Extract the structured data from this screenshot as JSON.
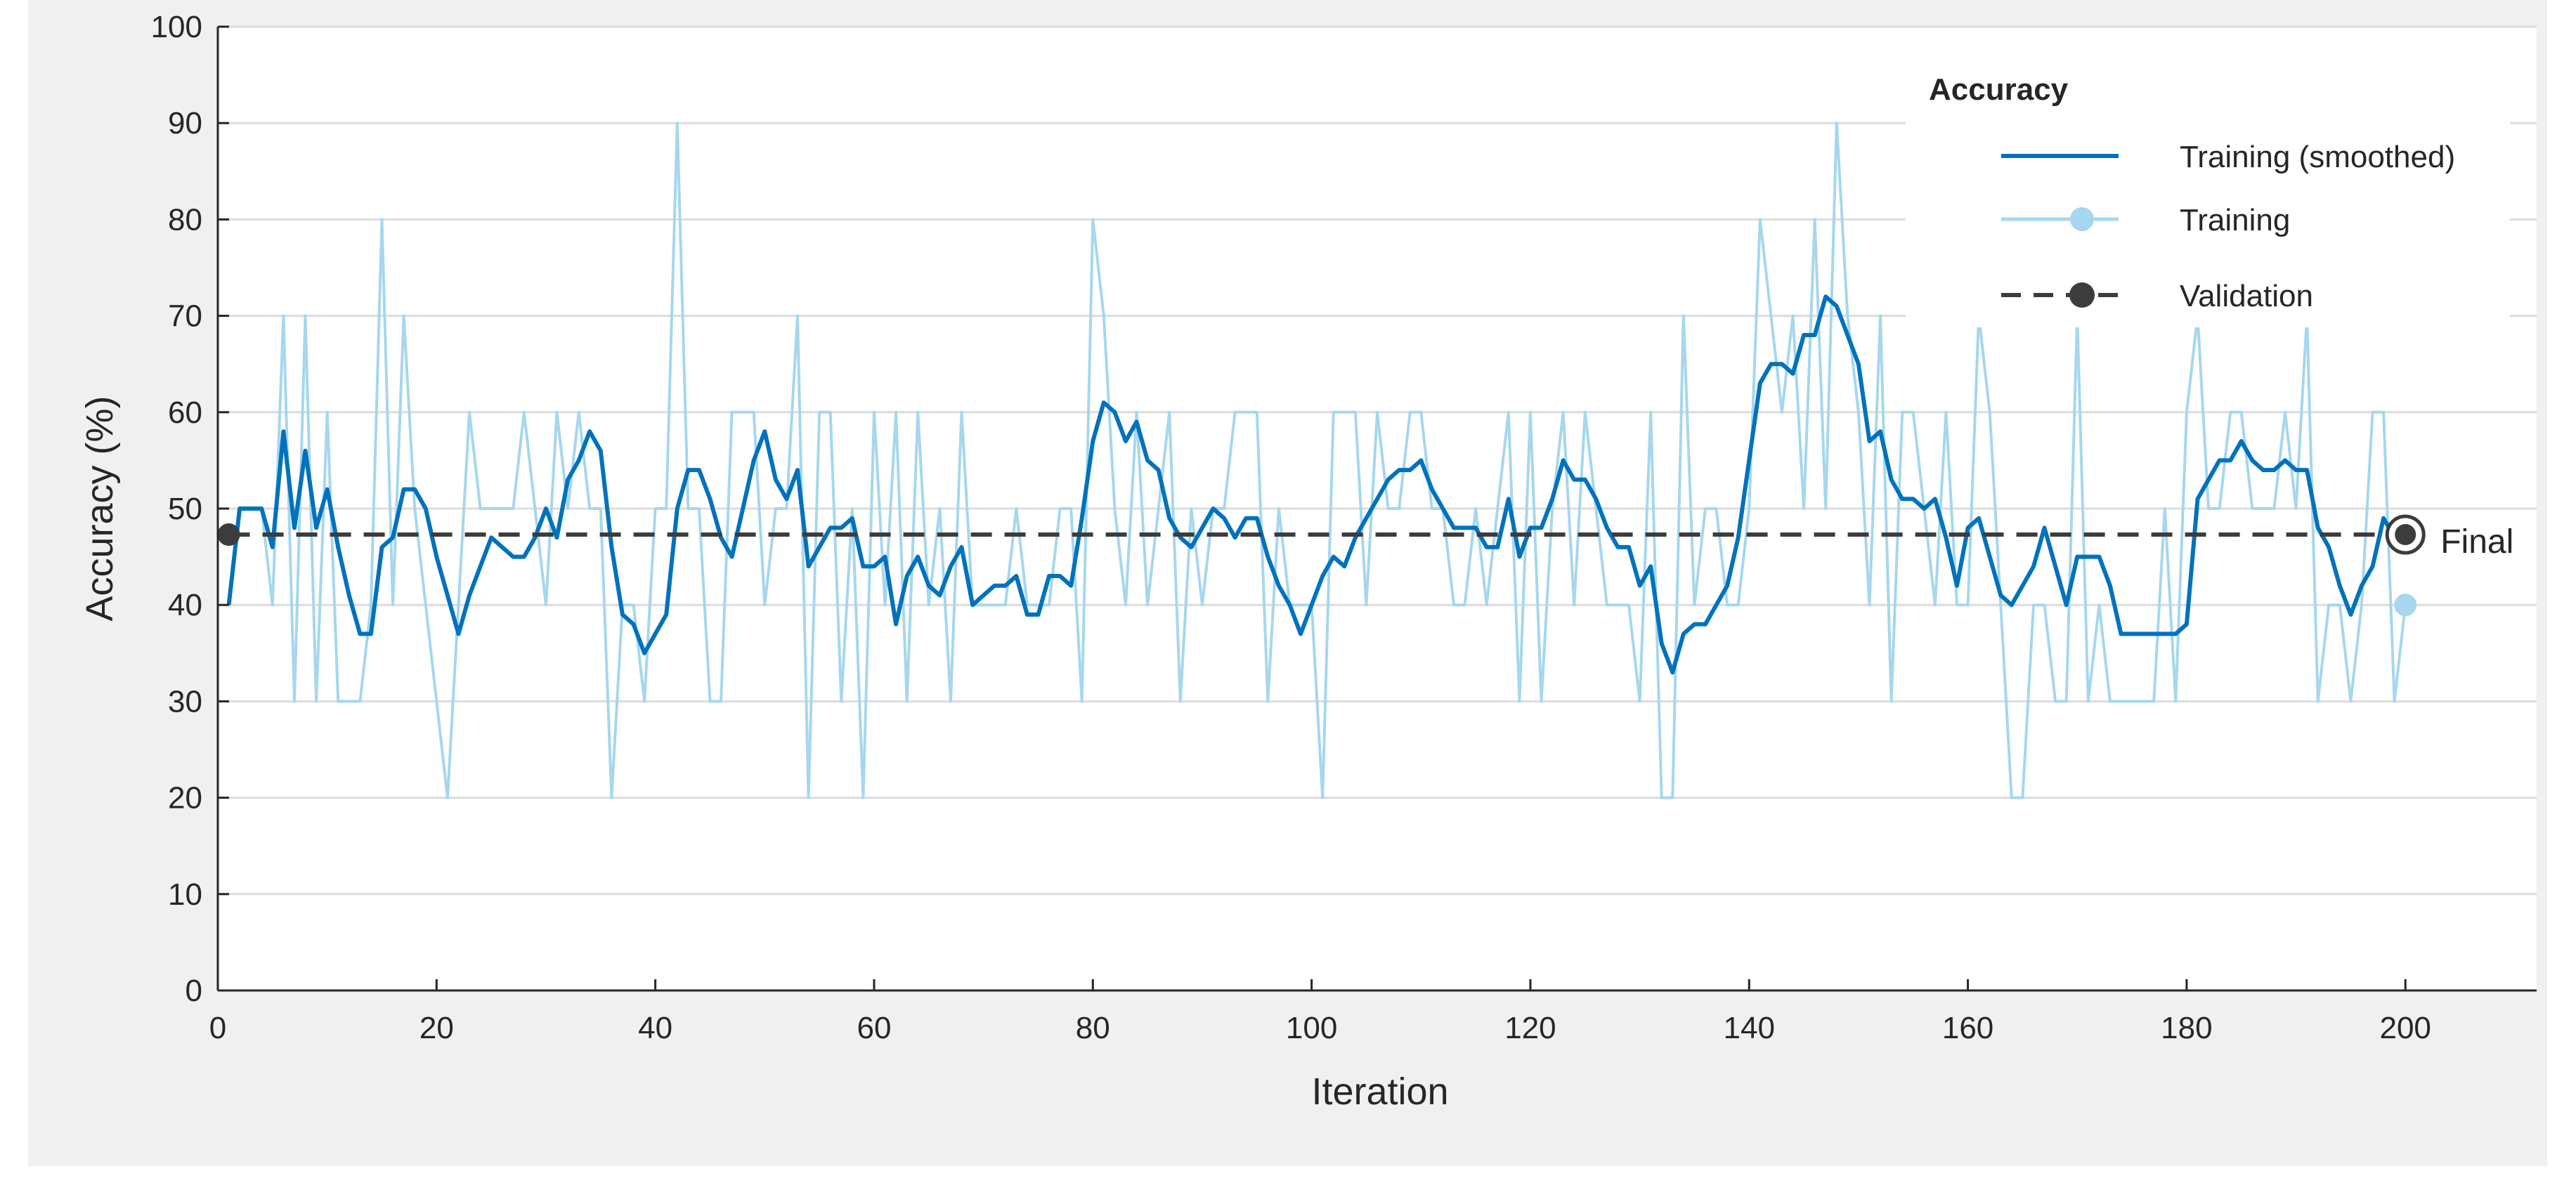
{
  "colors": {
    "panel_bg": "#f0f0f0",
    "plot_bg": "#ffffff",
    "grid": "#dcdcdc",
    "axis": "#262626",
    "smoothed": "#0072bd",
    "training": "#a6d7ee",
    "validation": "#3c3c3c"
  },
  "legend": {
    "title": "Accuracy",
    "items": [
      {
        "label": "Training (smoothed)",
        "key": "smoothed"
      },
      {
        "label": "Training",
        "key": "training"
      },
      {
        "label": "Validation",
        "key": "validation"
      }
    ]
  },
  "final_label": "Final",
  "chart_data": {
    "type": "line",
    "xlabel": "Iteration",
    "ylabel": "Accuracy (%)",
    "xlim": [
      0,
      212
    ],
    "ylim": [
      0,
      100
    ],
    "xticks": [
      0,
      20,
      40,
      60,
      80,
      100,
      120,
      140,
      160,
      180,
      200
    ],
    "yticks": [
      0,
      10,
      20,
      30,
      40,
      50,
      60,
      70,
      80,
      90,
      100
    ],
    "grid": true,
    "legend_position": "top-right",
    "series": [
      {
        "name": "Training",
        "x": [
          1,
          2,
          3,
          4,
          5,
          6,
          7,
          8,
          9,
          10,
          11,
          12,
          13,
          14,
          15,
          16,
          17,
          18,
          19,
          20,
          21,
          22,
          23,
          24,
          25,
          26,
          27,
          28,
          29,
          30,
          31,
          32,
          33,
          34,
          35,
          36,
          37,
          38,
          39,
          40,
          41,
          42,
          43,
          44,
          45,
          46,
          47,
          48,
          49,
          50,
          51,
          52,
          53,
          54,
          55,
          56,
          57,
          58,
          59,
          60,
          61,
          62,
          63,
          64,
          65,
          66,
          67,
          68,
          69,
          70,
          71,
          72,
          73,
          74,
          75,
          76,
          77,
          78,
          79,
          80,
          81,
          82,
          83,
          84,
          85,
          86,
          87,
          88,
          89,
          90,
          91,
          92,
          93,
          94,
          95,
          96,
          97,
          98,
          99,
          100,
          101,
          102,
          103,
          104,
          105,
          106,
          107,
          108,
          109,
          110,
          111,
          112,
          113,
          114,
          115,
          116,
          117,
          118,
          119,
          120,
          121,
          122,
          123,
          124,
          125,
          126,
          127,
          128,
          129,
          130,
          131,
          132,
          133,
          134,
          135,
          136,
          137,
          138,
          139,
          140,
          141,
          142,
          143,
          144,
          145,
          146,
          147,
          148,
          149,
          150,
          151,
          152,
          153,
          154,
          155,
          156,
          157,
          158,
          159,
          160,
          161,
          162,
          163,
          164,
          165,
          166,
          167,
          168,
          169,
          170,
          171,
          172,
          173,
          174,
          175,
          176,
          177,
          178,
          179,
          180,
          181,
          182,
          183,
          184,
          185,
          186,
          187,
          188,
          189,
          190,
          191,
          192,
          193,
          194,
          195,
          196,
          197,
          198,
          199,
          200
        ],
        "values": [
          40,
          50,
          50,
          50,
          40,
          70,
          30,
          70,
          30,
          60,
          30,
          30,
          30,
          40,
          80,
          40,
          70,
          50,
          40,
          30,
          20,
          40,
          60,
          50,
          50,
          50,
          50,
          60,
          50,
          40,
          60,
          50,
          60,
          50,
          50,
          20,
          40,
          40,
          30,
          50,
          50,
          90,
          50,
          50,
          30,
          30,
          60,
          60,
          60,
          40,
          50,
          50,
          70,
          20,
          60,
          60,
          30,
          50,
          20,
          60,
          40,
          60,
          30,
          60,
          40,
          50,
          30,
          60,
          40,
          40,
          40,
          40,
          50,
          40,
          40,
          40,
          50,
          50,
          30,
          80,
          70,
          50,
          40,
          60,
          40,
          50,
          60,
          30,
          50,
          40,
          50,
          50,
          60,
          60,
          60,
          30,
          50,
          40,
          40,
          40,
          20,
          60,
          60,
          60,
          40,
          60,
          50,
          50,
          60,
          60,
          50,
          50,
          40,
          40,
          50,
          40,
          50,
          60,
          30,
          60,
          30,
          50,
          60,
          40,
          60,
          50,
          40,
          40,
          40,
          30,
          60,
          20,
          20,
          70,
          40,
          50,
          50,
          40,
          40,
          50,
          80,
          70,
          60,
          70,
          50,
          80,
          50,
          90,
          70,
          60,
          40,
          70,
          30,
          60,
          60,
          50,
          40,
          60,
          40,
          40,
          70,
          60,
          40,
          20,
          20,
          40,
          40,
          30,
          30,
          70,
          30,
          40,
          30,
          30,
          30,
          30,
          30,
          50,
          30,
          60,
          70,
          50,
          50,
          60,
          60,
          50,
          50,
          50,
          60,
          50,
          70,
          30,
          40,
          40,
          30,
          40,
          60,
          60,
          30,
          40
        ]
      },
      {
        "name": "Training (smoothed)",
        "x": [
          1,
          2,
          3,
          4,
          5,
          6,
          7,
          8,
          9,
          10,
          11,
          12,
          13,
          14,
          15,
          16,
          17,
          18,
          19,
          20,
          21,
          22,
          23,
          24,
          25,
          26,
          27,
          28,
          29,
          30,
          31,
          32,
          33,
          34,
          35,
          36,
          37,
          38,
          39,
          40,
          41,
          42,
          43,
          44,
          45,
          46,
          47,
          48,
          49,
          50,
          51,
          52,
          53,
          54,
          55,
          56,
          57,
          58,
          59,
          60,
          61,
          62,
          63,
          64,
          65,
          66,
          67,
          68,
          69,
          70,
          71,
          72,
          73,
          74,
          75,
          76,
          77,
          78,
          79,
          80,
          81,
          82,
          83,
          84,
          85,
          86,
          87,
          88,
          89,
          90,
          91,
          92,
          93,
          94,
          95,
          96,
          97,
          98,
          99,
          100,
          101,
          102,
          103,
          104,
          105,
          106,
          107,
          108,
          109,
          110,
          111,
          112,
          113,
          114,
          115,
          116,
          117,
          118,
          119,
          120,
          121,
          122,
          123,
          124,
          125,
          126,
          127,
          128,
          129,
          130,
          131,
          132,
          133,
          134,
          135,
          136,
          137,
          138,
          139,
          140,
          141,
          142,
          143,
          144,
          145,
          146,
          147,
          148,
          149,
          150,
          151,
          152,
          153,
          154,
          155,
          156,
          157,
          158,
          159,
          160,
          161,
          162,
          163,
          164,
          165,
          166,
          167,
          168,
          169,
          170,
          171,
          172,
          173,
          174,
          175,
          176,
          177,
          178,
          179,
          180,
          181,
          182,
          183,
          184,
          185,
          186,
          187,
          188,
          189,
          190,
          191,
          192,
          193,
          194,
          195,
          196,
          197,
          198,
          199,
          200
        ],
        "values": [
          40,
          50,
          50,
          50,
          46,
          58,
          48,
          56,
          48,
          52,
          46,
          41,
          37,
          37,
          46,
          47,
          52,
          52,
          50,
          45,
          41,
          37,
          41,
          44,
          47,
          46,
          45,
          45,
          47,
          50,
          47,
          53,
          55,
          58,
          56,
          46,
          39,
          38,
          35,
          37,
          39,
          50,
          54,
          54,
          51,
          47,
          45,
          50,
          55,
          58,
          53,
          51,
          54,
          44,
          46,
          48,
          48,
          49,
          44,
          44,
          45,
          38,
          43,
          45,
          42,
          41,
          44,
          46,
          40,
          41,
          42,
          42,
          43,
          39,
          39,
          43,
          43,
          42,
          49,
          57,
          61,
          60,
          57,
          59,
          55,
          54,
          49,
          47,
          46,
          48,
          50,
          49,
          47,
          49,
          49,
          45,
          42,
          40,
          37,
          40,
          43,
          45,
          44,
          47,
          49,
          51,
          53,
          54,
          54,
          55,
          52,
          50,
          48,
          48,
          48,
          46,
          46,
          51,
          45,
          48,
          48,
          51,
          55,
          53,
          53,
          51,
          48,
          46,
          46,
          42,
          44,
          36,
          33,
          37,
          38,
          38,
          40,
          42,
          47,
          55,
          63,
          65,
          65,
          64,
          68,
          68,
          72,
          71,
          68,
          65,
          57,
          58,
          53,
          51,
          51,
          50,
          51,
          47,
          42,
          48,
          49,
          45,
          41,
          40,
          42,
          44,
          48,
          44,
          40,
          45,
          45,
          45,
          42,
          37,
          37,
          37,
          37,
          37,
          37,
          38,
          51,
          53,
          55,
          55,
          57,
          55,
          54,
          54,
          55,
          54,
          54,
          48,
          46,
          42,
          39,
          42,
          44,
          49,
          47,
          47
        ]
      },
      {
        "name": "Validation",
        "x": [
          1,
          200
        ],
        "values": [
          47.3,
          47.3
        ]
      }
    ],
    "final": {
      "training": 40,
      "validation": 47.3
    }
  }
}
